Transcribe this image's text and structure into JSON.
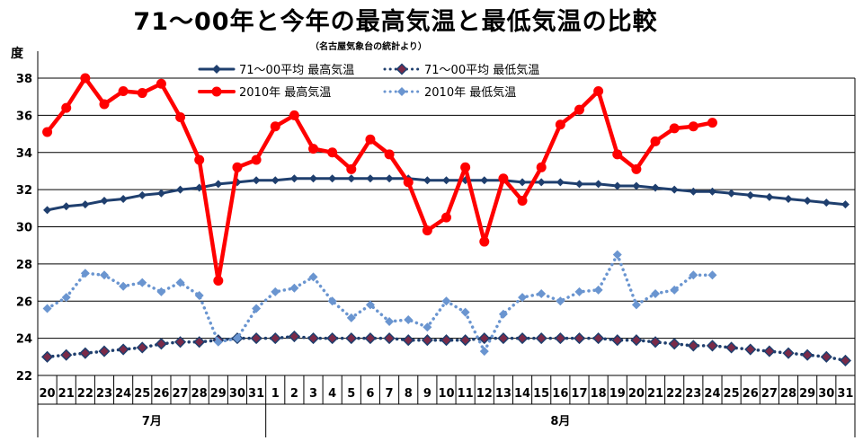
{
  "title": "71～00年と今年の最高気温と最低気温の比較",
  "subtitle": "（名古屋気象台の統計より）",
  "chart_data": {
    "type": "line",
    "ylabel": "度",
    "ylim": [
      22,
      38
    ],
    "yticks": [
      22,
      24,
      26,
      28,
      30,
      32,
      34,
      36,
      38
    ],
    "grid": true,
    "legend_position": "top",
    "categories": [
      "20",
      "21",
      "22",
      "23",
      "24",
      "25",
      "26",
      "27",
      "28",
      "29",
      "30",
      "31",
      "1",
      "2",
      "3",
      "4",
      "5",
      "6",
      "7",
      "8",
      "9",
      "10",
      "11",
      "12",
      "13",
      "14",
      "15",
      "16",
      "17",
      "18",
      "19",
      "20",
      "21",
      "22",
      "23",
      "24",
      "25",
      "26",
      "27",
      "28",
      "29",
      "30",
      "31"
    ],
    "groups": [
      {
        "label": "7月",
        "count": 12
      },
      {
        "label": "8月",
        "count": 31
      }
    ],
    "series": [
      {
        "name": "71～00平均 最高気温",
        "color": "#1f3f6e",
        "style": "solid-diamond",
        "values": [
          30.9,
          31.1,
          31.2,
          31.4,
          31.5,
          31.7,
          31.8,
          32.0,
          32.1,
          32.3,
          32.4,
          32.5,
          32.5,
          32.6,
          32.6,
          32.6,
          32.6,
          32.6,
          32.6,
          32.6,
          32.5,
          32.5,
          32.5,
          32.5,
          32.5,
          32.4,
          32.4,
          32.4,
          32.3,
          32.3,
          32.2,
          32.2,
          32.1,
          32.0,
          31.9,
          31.9,
          31.8,
          31.7,
          31.6,
          31.5,
          31.4,
          31.3,
          31.2
        ]
      },
      {
        "name": "71～00平均 最低気温",
        "color": "#1f3f6e",
        "style": "dotted-diamond",
        "values": [
          23.0,
          23.1,
          23.2,
          23.3,
          23.4,
          23.5,
          23.7,
          23.8,
          23.8,
          23.9,
          24.0,
          24.0,
          24.0,
          24.1,
          24.0,
          24.0,
          24.0,
          24.0,
          24.0,
          23.9,
          23.9,
          23.9,
          23.9,
          24.0,
          24.0,
          24.0,
          24.0,
          24.0,
          24.0,
          24.0,
          23.9,
          23.9,
          23.8,
          23.7,
          23.6,
          23.6,
          23.5,
          23.4,
          23.3,
          23.2,
          23.1,
          23.0,
          22.8
        ]
      },
      {
        "name": "2010年 最高気温",
        "color": "#ff0000",
        "style": "solid-circle",
        "values": [
          35.1,
          36.4,
          38.0,
          36.6,
          37.3,
          37.2,
          37.7,
          35.9,
          33.6,
          27.1,
          33.2,
          33.6,
          35.4,
          36.0,
          34.2,
          34.0,
          33.1,
          34.7,
          33.9,
          32.4,
          29.8,
          30.5,
          33.2,
          29.2,
          32.6,
          31.4,
          33.2,
          35.5,
          36.3,
          37.3,
          33.9,
          33.1,
          34.6,
          35.3,
          35.4,
          35.6,
          null,
          null,
          null,
          null,
          null,
          null,
          null
        ]
      },
      {
        "name": "2010年 最低気温",
        "color": "#6a95d0",
        "style": "dotted-diamond",
        "values": [
          25.6,
          26.2,
          27.5,
          27.4,
          26.8,
          27.0,
          26.5,
          27.0,
          26.3,
          23.8,
          24.0,
          25.6,
          26.5,
          26.7,
          27.3,
          26.0,
          25.1,
          25.8,
          24.9,
          25.0,
          24.6,
          26.0,
          25.4,
          23.3,
          25.3,
          26.2,
          26.4,
          26.0,
          26.5,
          26.6,
          28.5,
          25.8,
          26.4,
          26.6,
          27.4,
          27.4,
          null,
          null,
          null,
          null,
          null,
          null,
          null
        ]
      }
    ]
  }
}
